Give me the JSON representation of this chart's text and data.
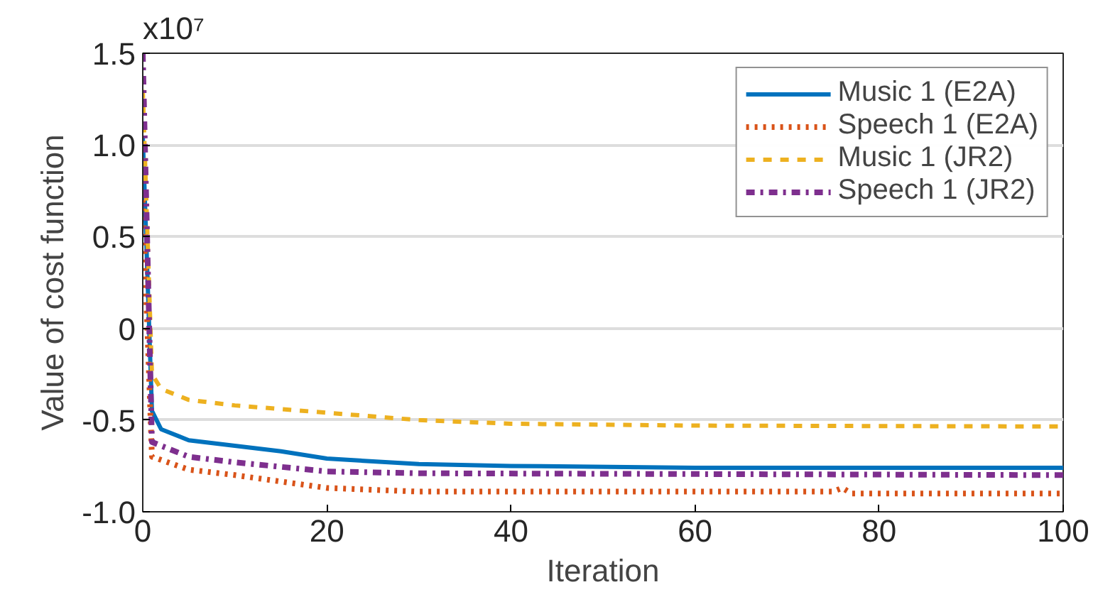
{
  "chart_data": {
    "type": "line",
    "xlabel": "Iteration",
    "ylabel": "Value of cost function",
    "annotations": [
      "x10⁷"
    ],
    "xlim": [
      0,
      100
    ],
    "xticks": [
      0,
      20,
      40,
      60,
      80,
      100
    ],
    "ylim": [
      -1.0,
      1.5
    ],
    "yticks": [
      {
        "value": -1.0,
        "label": "-1.0"
      },
      -0.5,
      0,
      0.5,
      {
        "value": 1.0,
        "label": "1.0"
      },
      1.5
    ],
    "grid": "y",
    "legend": "top right",
    "series": [
      {
        "name": "Music 1 (E2A)",
        "color": "#0072bd",
        "line_style": "solid",
        "x": [
          0,
          1,
          2,
          5,
          10,
          15,
          20,
          30,
          40,
          60,
          100
        ],
        "values": [
          1.05,
          -0.45,
          -0.55,
          -0.61,
          -0.64,
          -0.67,
          -0.71,
          -0.74,
          -0.75,
          -0.76,
          -0.76
        ]
      },
      {
        "name": "Speech 1 (E2A)",
        "color": "#d95319",
        "line_style": "dotted",
        "x": [
          0,
          1,
          5,
          10,
          20,
          30,
          75,
          76,
          77,
          100
        ],
        "values": [
          0.7,
          -0.7,
          -0.77,
          -0.8,
          -0.87,
          -0.89,
          -0.89,
          -0.87,
          -0.9,
          -0.9
        ]
      },
      {
        "name": "Music 1 (JR2)",
        "color": "#edb120",
        "line_style": "dashed",
        "x": [
          0,
          1,
          2,
          5,
          10,
          20,
          30,
          40,
          60,
          100
        ],
        "values": [
          1.3,
          -0.25,
          -0.33,
          -0.39,
          -0.42,
          -0.46,
          -0.5,
          -0.52,
          -0.53,
          -0.535
        ]
      },
      {
        "name": "Speech 1 (JR2)",
        "color": "#7e2f8e",
        "line_style": "dashdot",
        "x": [
          0,
          1,
          5,
          10,
          20,
          30,
          100
        ],
        "values": [
          1.5,
          -0.62,
          -0.7,
          -0.73,
          -0.78,
          -0.79,
          -0.8
        ]
      }
    ]
  }
}
